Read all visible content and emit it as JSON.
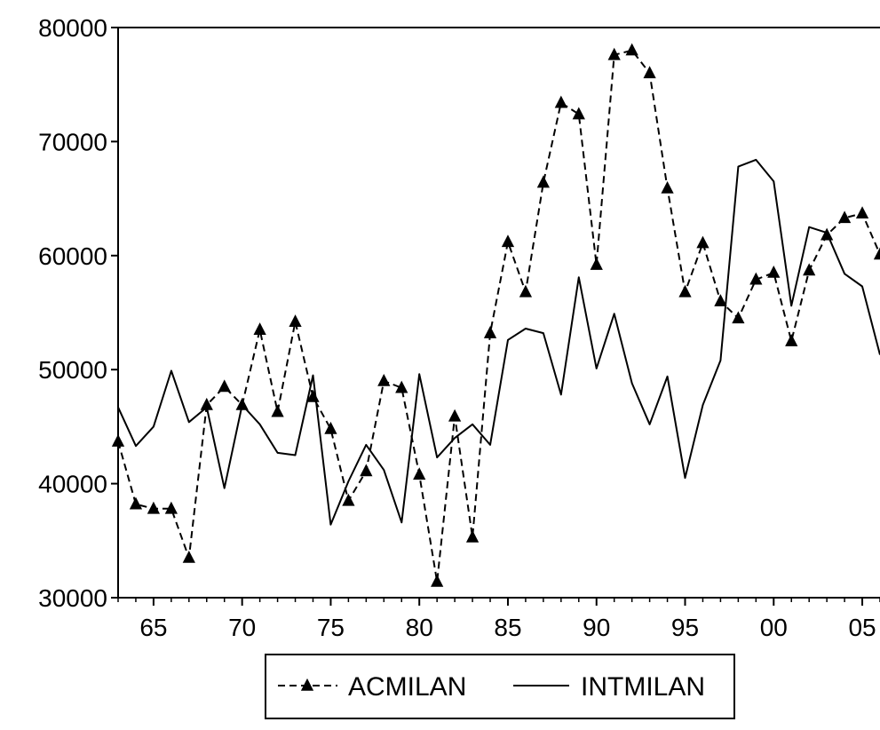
{
  "chart_data": {
    "type": "line",
    "title": "",
    "xlabel": "",
    "ylabel": "",
    "xlim": [
      1963,
      2006
    ],
    "ylim": [
      30000,
      80000
    ],
    "y_ticks": [
      30000,
      40000,
      50000,
      60000,
      70000,
      80000
    ],
    "y_tick_labels": [
      "30000",
      "40000",
      "50000",
      "60000",
      "70000",
      "80000"
    ],
    "x_ticks": [
      1965,
      1970,
      1975,
      1980,
      1985,
      1990,
      1995,
      2000,
      2005
    ],
    "x_tick_labels": [
      "65",
      "70",
      "75",
      "80",
      "85",
      "90",
      "95",
      "00",
      "05"
    ],
    "grid": false,
    "legend_position": "bottom",
    "x": [
      1963,
      1964,
      1965,
      1966,
      1967,
      1968,
      1969,
      1970,
      1971,
      1972,
      1973,
      1974,
      1975,
      1976,
      1977,
      1978,
      1979,
      1980,
      1981,
      1982,
      1983,
      1984,
      1985,
      1986,
      1987,
      1988,
      1989,
      1990,
      1991,
      1992,
      1993,
      1994,
      1995,
      1996,
      1997,
      1998,
      1999,
      2000,
      2001,
      2002,
      2003,
      2004,
      2005,
      2006
    ],
    "series": [
      {
        "name": "ACMILAN",
        "style": "dashed",
        "marker": "triangle",
        "color": "#000000",
        "values": [
          43700,
          38200,
          37800,
          37800,
          33500,
          46900,
          48500,
          46900,
          53500,
          46300,
          54200,
          47600,
          44800,
          38500,
          41100,
          49000,
          48400,
          40800,
          31400,
          45900,
          35300,
          53200,
          61200,
          56800,
          66400,
          73400,
          72400,
          59200,
          77600,
          78000,
          76000,
          65900,
          56800,
          61100,
          56000,
          54500,
          57900,
          58500,
          52500,
          58700,
          61800,
          63300,
          63700,
          60100
        ]
      },
      {
        "name": "INTMILAN",
        "style": "solid",
        "marker": "none",
        "color": "#000000",
        "values": [
          46700,
          43300,
          45000,
          49900,
          45400,
          46700,
          39600,
          46900,
          45200,
          42700,
          42500,
          49500,
          36400,
          40200,
          43400,
          41200,
          36600,
          49600,
          42300,
          44000,
          45200,
          43400,
          52600,
          53600,
          53200,
          47800,
          58100,
          50100,
          54900,
          48800,
          45200,
          49400,
          40500,
          46900,
          50800,
          67800,
          68400,
          66500,
          55600,
          62500,
          62000,
          58400,
          57300,
          51300
        ]
      }
    ]
  }
}
